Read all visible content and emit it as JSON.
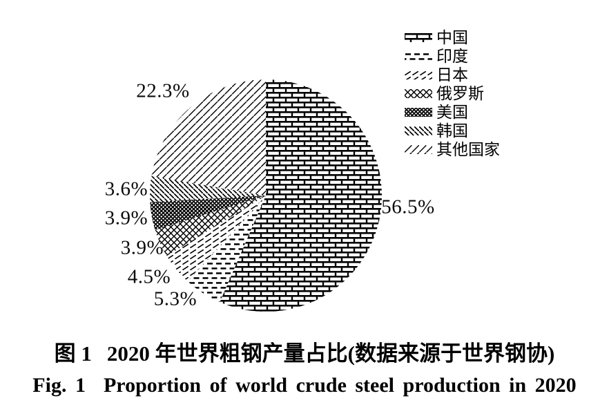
{
  "colors": {
    "ink": "#000000",
    "background": "#ffffff"
  },
  "captions": {
    "zh_label": "图 1",
    "zh_text": "2020 年世界粗钢产量占比(数据来源于世界钢协)",
    "en_label": "Fig. 1",
    "en_text": "Proportion of world crude steel production in 2020"
  },
  "chart_data": {
    "type": "pie",
    "title": "2020 年世界粗钢产量占比",
    "legend_position": "top-right",
    "start_angle_deg": 0,
    "direction": "clockwise",
    "total": 100.0,
    "slices": [
      {
        "key": "china",
        "name": "中国",
        "value": 56.5,
        "label": "56.5%",
        "pattern": "brick"
      },
      {
        "key": "india",
        "name": "印度",
        "value": 5.3,
        "label": "5.3%",
        "pattern": "hdash"
      },
      {
        "key": "japan",
        "name": "日本",
        "value": 4.5,
        "label": "4.5%",
        "pattern": "ticks"
      },
      {
        "key": "russia",
        "name": "俄罗斯",
        "value": 3.9,
        "label": "3.9%",
        "pattern": "xopen"
      },
      {
        "key": "usa",
        "name": "美国",
        "value": 3.9,
        "label": "3.9%",
        "pattern": "xdense"
      },
      {
        "key": "korea",
        "name": "韩国",
        "value": 3.6,
        "label": "3.6%",
        "pattern": "bslash"
      },
      {
        "key": "others",
        "name": "其他国家",
        "value": 22.3,
        "label": "22.3%",
        "pattern": "slash"
      }
    ]
  }
}
